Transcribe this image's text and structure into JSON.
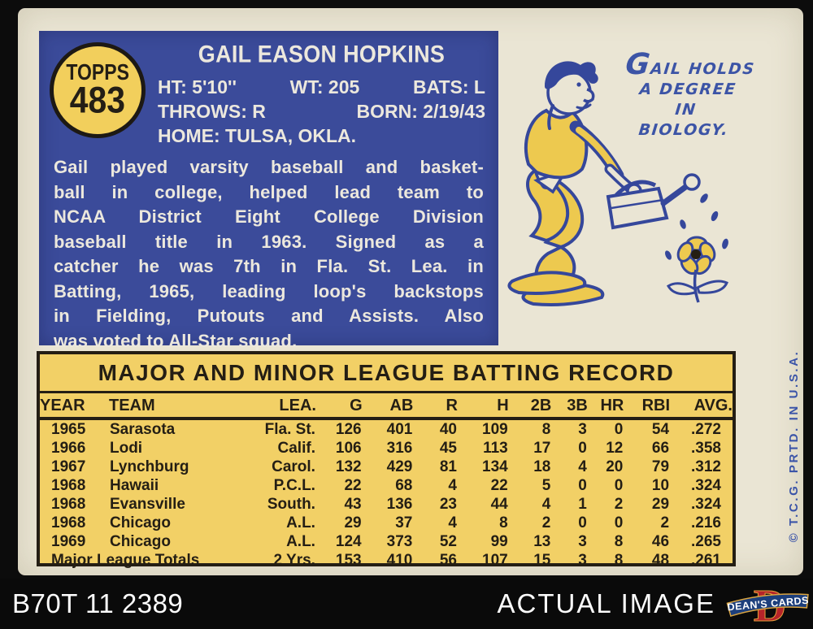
{
  "colors": {
    "panel_blue": "#3b4b9a",
    "accent_yellow": "#f2cf5c",
    "table_yellow": "#f2d066",
    "card_cream": "#eae5d4",
    "ink_black": "#241e14",
    "caption_blue": "#3c54a6",
    "footer_black": "#0a0a0a",
    "logo_red": "#b5242a",
    "logo_banner_blue": "#1d3f7c"
  },
  "card": {
    "badge": {
      "brand": "TOPPS",
      "number": "483"
    },
    "header": {
      "name": "GAIL EASON HOPKINS",
      "ht": "HT: 5'10''",
      "wt": "WT: 205",
      "bats": "BATS: L",
      "throws": "THROWS: R",
      "born": "BORN: 2/19/43",
      "home": "HOME: TULSA, OKLA."
    },
    "bio_lines": [
      "Gail played varsity baseball and basket-",
      "ball in college, helped lead team to",
      "NCAA District Eight College Division",
      "baseball title in 1963. Signed as a",
      "catcher he was 7th in Fla. St. Lea. in",
      "Batting, 1965, leading loop's backstops",
      "in Fielding, Putouts and Assists. Also",
      "was voted to All-Star squad."
    ],
    "cartoon_caption": [
      "GAIL HOLDS",
      "A DEGREE",
      "IN",
      "BIOLOGY."
    ],
    "side_credit": "© T.C.G. PRTD. IN U.S.A.",
    "table": {
      "title": "MAJOR AND MINOR LEAGUE BATTING RECORD",
      "columns": [
        "YEAR",
        "TEAM",
        "LEA.",
        "G",
        "AB",
        "R",
        "H",
        "2B",
        "3B",
        "HR",
        "RBI",
        "AVG."
      ],
      "rows": [
        [
          "1965",
          "Sarasota",
          "Fla. St.",
          "126",
          "401",
          "40",
          "109",
          "8",
          "3",
          "0",
          "54",
          ".272"
        ],
        [
          "1966",
          "Lodi",
          "Calif.",
          "106",
          "316",
          "45",
          "113",
          "17",
          "0",
          "12",
          "66",
          ".358"
        ],
        [
          "1967",
          "Lynchburg",
          "Carol.",
          "132",
          "429",
          "81",
          "134",
          "18",
          "4",
          "20",
          "79",
          ".312"
        ],
        [
          "1968",
          "Hawaii",
          "P.C.L.",
          "22",
          "68",
          "4",
          "22",
          "5",
          "0",
          "0",
          "10",
          ".324"
        ],
        [
          "1968",
          "Evansville",
          "South.",
          "43",
          "136",
          "23",
          "44",
          "4",
          "1",
          "2",
          "29",
          ".324"
        ],
        [
          "1968",
          "Chicago",
          "A.L.",
          "29",
          "37",
          "4",
          "8",
          "2",
          "0",
          "0",
          "2",
          ".216"
        ],
        [
          "1969",
          "Chicago",
          "A.L.",
          "124",
          "373",
          "52",
          "99",
          "13",
          "3",
          "8",
          "46",
          ".265"
        ],
        [
          "Major League Totals",
          "",
          "2 Yrs.",
          "153",
          "410",
          "56",
          "107",
          "15",
          "3",
          "8",
          "48",
          ".261"
        ]
      ]
    }
  },
  "footer": {
    "code": "B70T 11 2389",
    "label": "ACTUAL IMAGE",
    "logo_letter": "D",
    "logo_banner": "DEAN'S CARDS"
  }
}
